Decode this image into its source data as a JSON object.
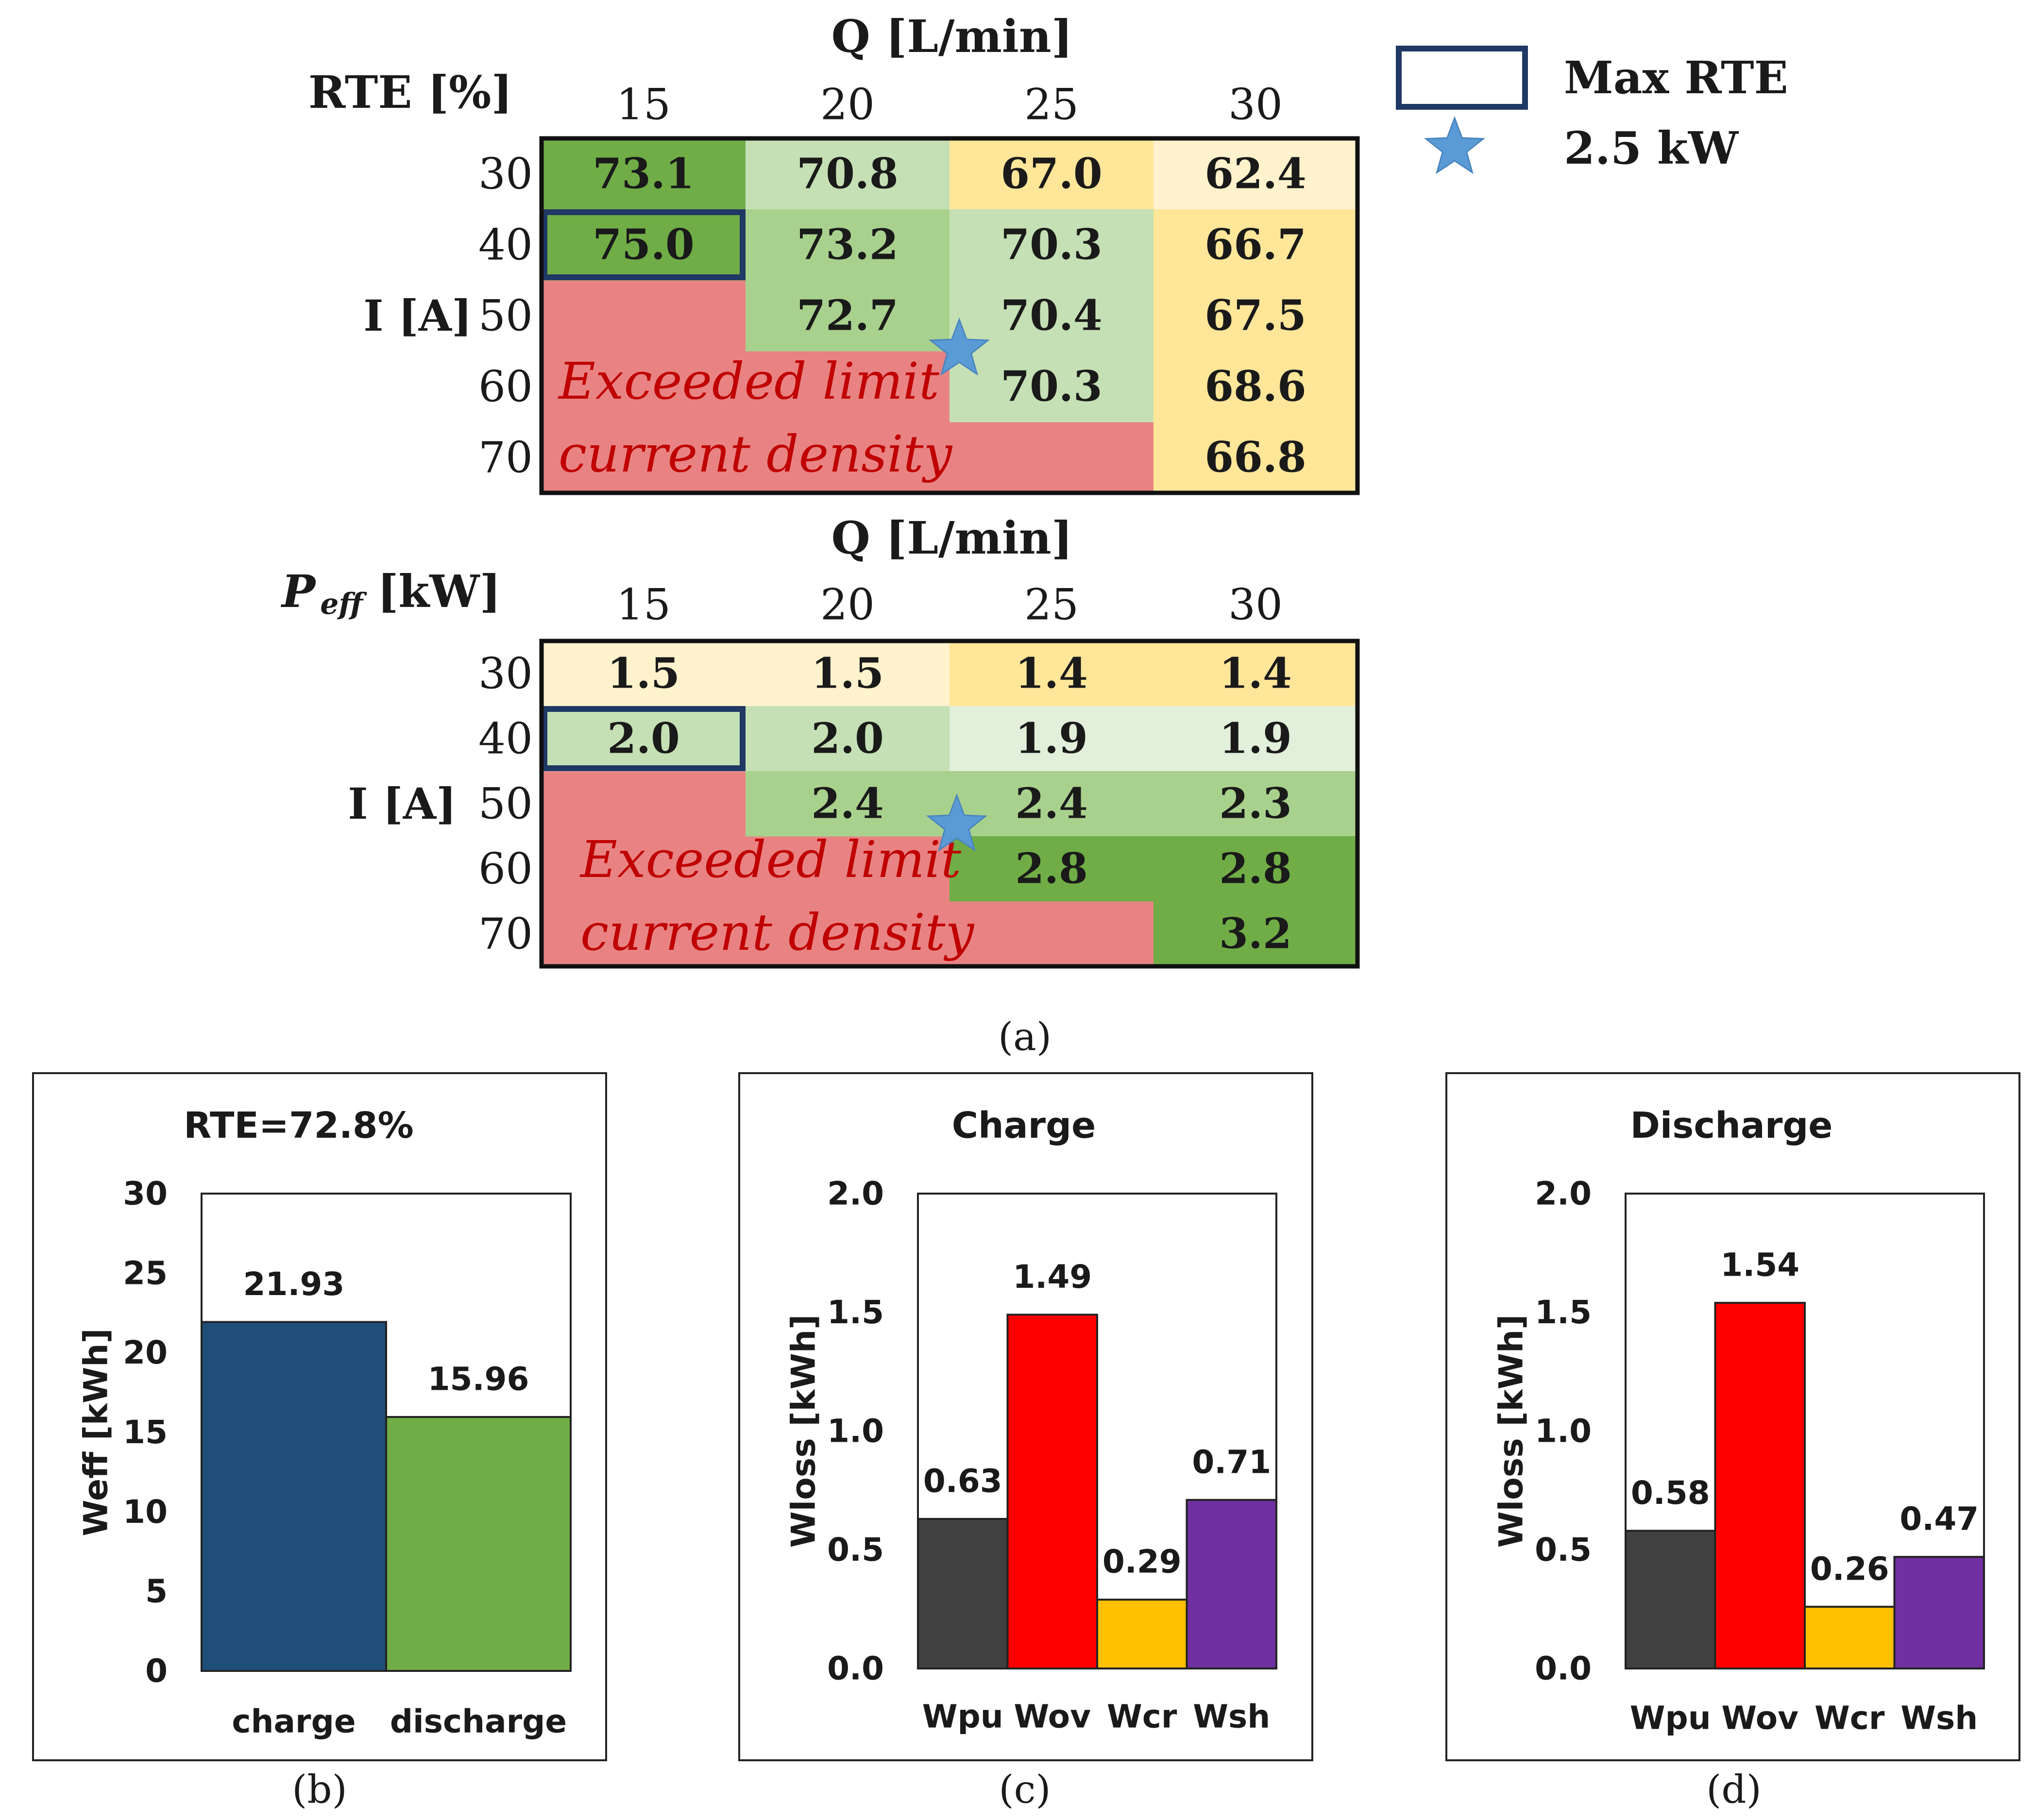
{
  "panel_labels": {
    "a": "(a)",
    "b": "(b)",
    "c": "(c)",
    "d": "(d)"
  },
  "legend": {
    "box_label": "Max RTE",
    "star_label": "2.5 kW"
  },
  "chart_data": [
    {
      "type": "heatmap",
      "id": "rte",
      "corner_label": "RTE [%]",
      "xlabel": "Q [L/min]",
      "ylabel": "I [A]",
      "x": [
        "15",
        "20",
        "25",
        "30"
      ],
      "y": [
        "30",
        "40",
        "50",
        "60",
        "70"
      ],
      "values": [
        [
          73.1,
          70.8,
          67.0,
          62.4
        ],
        [
          75.0,
          73.2,
          70.3,
          66.7
        ],
        [
          null,
          72.7,
          70.4,
          67.5
        ],
        [
          null,
          null,
          70.3,
          68.6
        ],
        [
          null,
          null,
          null,
          66.8
        ]
      ],
      "labels": [
        [
          "73.1",
          "70.8",
          "67.0",
          "62.4"
        ],
        [
          "75.0",
          "73.2",
          "70.3",
          "66.7"
        ],
        [
          "",
          "72.7",
          "70.4",
          "67.5"
        ],
        [
          "",
          "",
          "70.3",
          "68.6"
        ],
        [
          "",
          "",
          "",
          "66.8"
        ]
      ],
      "colors": [
        [
          "#70ad47",
          "#c5e0b4",
          "#ffe699",
          "#fff2cc"
        ],
        [
          "#70ad47",
          "#a9d18e",
          "#c5e0b4",
          "#ffe699"
        ],
        [
          null,
          "#a9d18e",
          "#c5e0b4",
          "#ffe699"
        ],
        [
          null,
          null,
          "#c5e0b4",
          "#ffe699"
        ],
        [
          null,
          null,
          null,
          "#ffe699"
        ]
      ],
      "highlight_cell": [
        1,
        0
      ],
      "exceeded_color": "#e98383",
      "exceeded_text": [
        "Exceeded limit",
        "current density"
      ]
    },
    {
      "type": "heatmap",
      "id": "peff",
      "corner_label": "P",
      "corner_sub": "eff",
      "corner_unit": "[kW]",
      "xlabel": "Q [L/min]",
      "ylabel": "I [A]",
      "x": [
        "15",
        "20",
        "25",
        "30"
      ],
      "y": [
        "30",
        "40",
        "50",
        "60",
        "70"
      ],
      "values": [
        [
          1.5,
          1.5,
          1.4,
          1.4
        ],
        [
          2.0,
          2.0,
          1.9,
          1.9
        ],
        [
          null,
          2.4,
          2.4,
          2.3
        ],
        [
          null,
          null,
          2.8,
          2.8
        ],
        [
          null,
          null,
          null,
          3.2
        ]
      ],
      "labels": [
        [
          "1.5",
          "1.5",
          "1.4",
          "1.4"
        ],
        [
          "2.0",
          "2.0",
          "1.9",
          "1.9"
        ],
        [
          "",
          "2.4",
          "2.4",
          "2.3"
        ],
        [
          "",
          "",
          "2.8",
          "2.8"
        ],
        [
          "",
          "",
          "",
          "3.2"
        ]
      ],
      "colors": [
        [
          "#fff2cc",
          "#fff2cc",
          "#ffe699",
          "#ffe699"
        ],
        [
          "#c5e0b4",
          "#c5e0b4",
          "#e2efda",
          "#e2efda"
        ],
        [
          null,
          "#a9d18e",
          "#a9d18e",
          "#a9d18e"
        ],
        [
          null,
          null,
          "#70ad47",
          "#70ad47"
        ],
        [
          null,
          null,
          null,
          "#70ad47"
        ]
      ],
      "highlight_cell": [
        1,
        0
      ],
      "exceeded_color": "#e98383",
      "exceeded_text": [
        "Exceeded limit",
        "current density"
      ]
    },
    {
      "type": "bar",
      "id": "b",
      "title": "RTE=72.8%",
      "ylabel": "Weff [kWh]",
      "categories": [
        "charge",
        "discharge"
      ],
      "values": [
        21.93,
        15.96
      ],
      "value_labels": [
        "21.93",
        "15.96"
      ],
      "colors": [
        "#1f4e79",
        "#70ad47"
      ],
      "ylim": [
        0,
        30
      ],
      "yticks": [
        "0",
        "5",
        "10",
        "15",
        "20",
        "25",
        "30"
      ],
      "ytick_values": [
        0,
        5,
        10,
        15,
        20,
        25,
        30
      ]
    },
    {
      "type": "bar",
      "id": "c",
      "title": "Charge",
      "ylabel": "Wloss [kWh]",
      "categories": [
        "Wpu",
        "Wov",
        "Wcr",
        "Wsh"
      ],
      "values": [
        0.63,
        1.49,
        0.29,
        0.71
      ],
      "value_labels": [
        "0.63",
        "1.49",
        "0.29",
        "0.71"
      ],
      "colors": [
        "#404040",
        "#ff0000",
        "#ffc000",
        "#7030a0"
      ],
      "ylim": [
        0,
        2
      ],
      "yticks": [
        "0.0",
        "0.5",
        "1.0",
        "1.5",
        "2.0"
      ],
      "ytick_values": [
        0,
        0.5,
        1.0,
        1.5,
        2.0
      ]
    },
    {
      "type": "bar",
      "id": "d",
      "title": "Discharge",
      "ylabel": "Wloss [kWh]",
      "categories": [
        "Wpu",
        "Wov",
        "Wcr",
        "Wsh"
      ],
      "values": [
        0.58,
        1.54,
        0.26,
        0.47
      ],
      "value_labels": [
        "0.58",
        "1.54",
        "0.26",
        "0.47"
      ],
      "colors": [
        "#404040",
        "#ff0000",
        "#ffc000",
        "#7030a0"
      ],
      "ylim": [
        0,
        2
      ],
      "yticks": [
        "0.0",
        "0.5",
        "1.0",
        "1.5",
        "2.0"
      ],
      "ytick_values": [
        0,
        0.5,
        1.0,
        1.5,
        2.0
      ]
    }
  ]
}
